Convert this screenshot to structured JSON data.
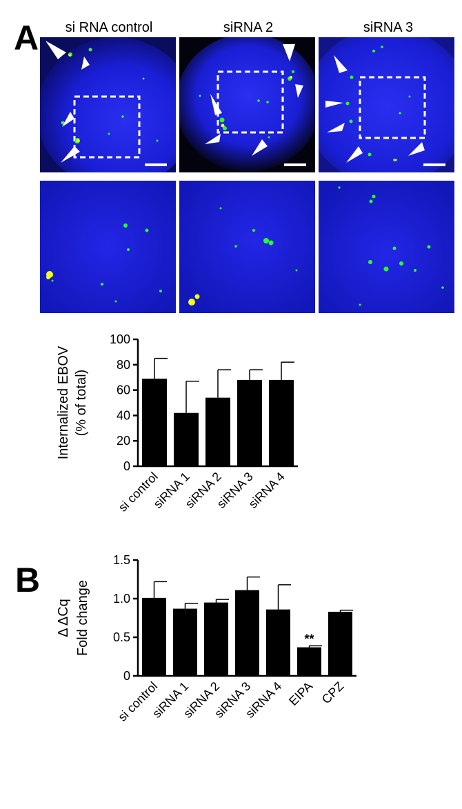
{
  "panels": {
    "a_label": "A",
    "b_label": "B",
    "micrograph_titles": [
      "si RNA control",
      "siRNA 2",
      "siRNA 3"
    ],
    "micrograph_colors": {
      "nucleus": "#1a1fd6",
      "background": "#050520",
      "particle_green": "#2aff2a",
      "particle_yellow": "#f2ff1a",
      "arrowhead": "#ffffff"
    }
  },
  "chart_data": [
    {
      "type": "bar",
      "title": "",
      "categories": [
        "si control",
        "siRNA 1",
        "siRNA 2",
        "siRNA 3",
        "siRNA 4"
      ],
      "values": [
        69,
        42,
        54,
        68,
        68
      ],
      "errors": [
        16,
        25,
        22,
        8,
        14
      ],
      "ylabel_lines": [
        "Internalized EBOV",
        "(% of total)"
      ],
      "xlabel": "",
      "ylim": [
        0,
        100
      ],
      "yticks": [
        "0",
        "20",
        "40",
        "60",
        "80",
        "100"
      ],
      "ytick_values": [
        0,
        20,
        40,
        60,
        80,
        100
      ],
      "annotations": [],
      "bar_color": "#000000",
      "grid": false,
      "legend": "none"
    },
    {
      "type": "bar",
      "title": "",
      "categories": [
        "si control",
        "siRNA 1",
        "siRNA 2",
        "siRNA 3",
        "siRNA 4",
        "EIPA",
        "CPZ"
      ],
      "values": [
        1.01,
        0.87,
        0.95,
        1.11,
        0.86,
        0.37,
        0.83
      ],
      "errors": [
        0.21,
        0.07,
        0.04,
        0.17,
        0.32,
        0.02,
        0.02
      ],
      "ylabel_lines": [
        "Δ ΔCq",
        "Fold change"
      ],
      "xlabel": "",
      "ylim": [
        0,
        1.5
      ],
      "yticks": [
        "0",
        "0.5",
        "1.0",
        "1.5"
      ],
      "ytick_values": [
        0,
        0.5,
        1.0,
        1.5
      ],
      "annotations": [
        {
          "category": "EIPA",
          "text": "**"
        }
      ],
      "bar_color": "#000000",
      "grid": false,
      "legend": "none"
    }
  ]
}
